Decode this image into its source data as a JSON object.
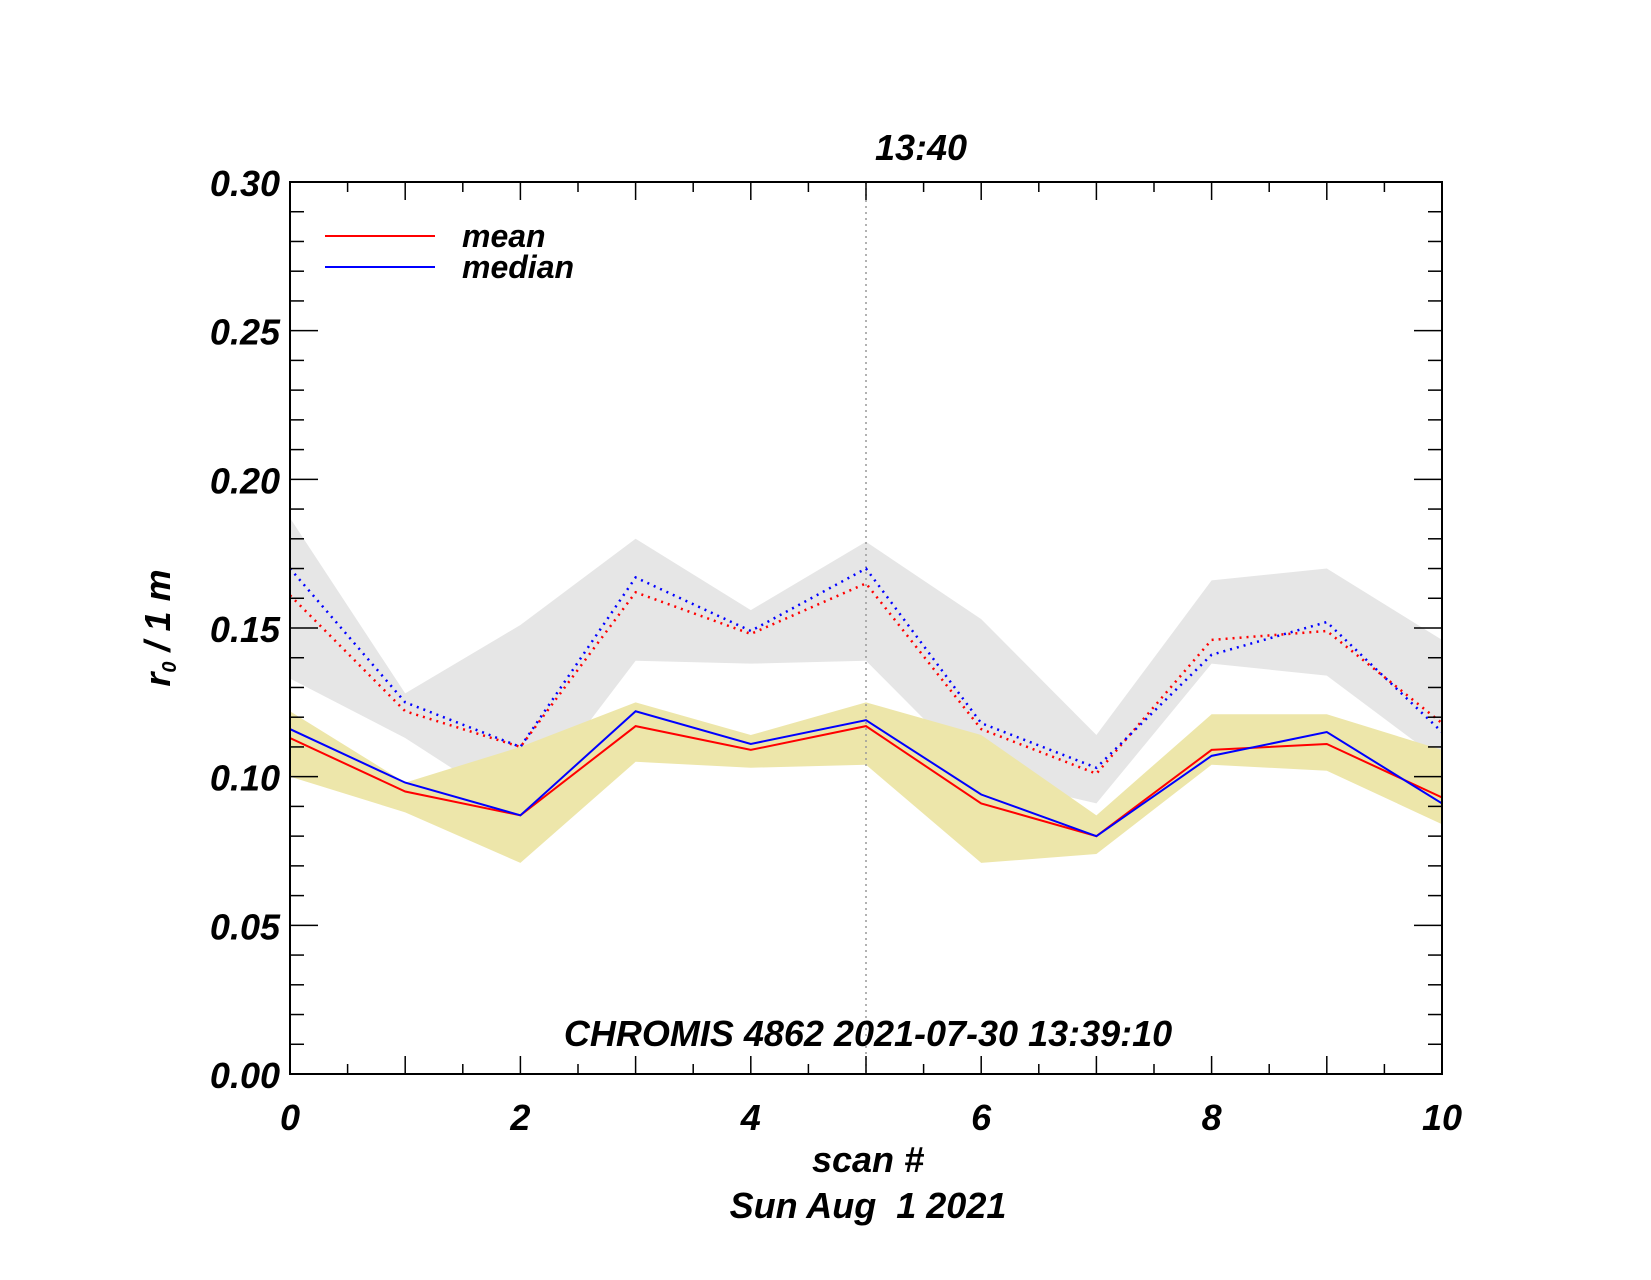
{
  "chart_data": {
    "type": "line",
    "title": "",
    "xlabel": "scan #",
    "xlabel2": "Sun Aug  1 2021",
    "ylabel_main": "r",
    "ylabel_sub": "0",
    "ylabel_rest": " / 1 m",
    "top_label": "13:40",
    "top_label_x": 5,
    "annotation": "CHROMIS 4862 2021-07-30 13:39:10",
    "xlim": [
      0,
      10
    ],
    "ylim": [
      0,
      0.3
    ],
    "x_ticks": [
      0,
      2,
      4,
      6,
      8,
      10
    ],
    "x_tick_labels": [
      "0",
      "2",
      "4",
      "6",
      "8",
      "10"
    ],
    "y_ticks": [
      0,
      0.05,
      0.1,
      0.15,
      0.2,
      0.25,
      0.3
    ],
    "y_tick_labels": [
      "0.00",
      "0.05",
      "0.10",
      "0.15",
      "0.20",
      "0.25",
      "0.30"
    ],
    "x": [
      0,
      1,
      2,
      3,
      4,
      5,
      6,
      7,
      8,
      9,
      10
    ],
    "bands": [
      {
        "name": "upper-spread",
        "color": "#e6e6e6",
        "upper": [
          0.187,
          0.128,
          0.151,
          0.18,
          0.156,
          0.179,
          0.153,
          0.114,
          0.166,
          0.17,
          0.146
        ],
        "lower": [
          0.133,
          0.113,
          0.088,
          0.139,
          0.138,
          0.139,
          0.1,
          0.091,
          0.138,
          0.134,
          0.105
        ]
      },
      {
        "name": "lower-spread",
        "color": "#ede6aa",
        "upper": [
          0.122,
          0.098,
          0.11,
          0.125,
          0.114,
          0.125,
          0.114,
          0.087,
          0.121,
          0.121,
          0.109
        ],
        "lower": [
          0.1,
          0.088,
          0.071,
          0.105,
          0.103,
          0.104,
          0.071,
          0.074,
          0.104,
          0.102,
          0.084
        ]
      }
    ],
    "series": [
      {
        "name": "mean",
        "color": "#ff0000",
        "style": "solid",
        "values": [
          0.113,
          0.095,
          0.087,
          0.117,
          0.109,
          0.117,
          0.091,
          0.08,
          0.109,
          0.111,
          0.093
        ]
      },
      {
        "name": "median",
        "color": "#0000ff",
        "style": "solid",
        "values": [
          0.116,
          0.098,
          0.087,
          0.122,
          0.111,
          0.119,
          0.094,
          0.08,
          0.107,
          0.115,
          0.091
        ]
      },
      {
        "name": "mean-upper",
        "color": "#ff0000",
        "style": "dotted",
        "values": [
          0.161,
          0.122,
          0.11,
          0.162,
          0.148,
          0.165,
          0.116,
          0.101,
          0.146,
          0.149,
          0.118
        ]
      },
      {
        "name": "median-upper",
        "color": "#0000ff",
        "style": "dotted",
        "values": [
          0.17,
          0.125,
          0.11,
          0.167,
          0.149,
          0.17,
          0.118,
          0.103,
          0.141,
          0.152,
          0.115
        ]
      }
    ],
    "legend": [
      {
        "label": "mean",
        "color": "#ff0000"
      },
      {
        "label": "median",
        "color": "#0000ff"
      }
    ],
    "legend_position": "top-left",
    "grid": false
  }
}
